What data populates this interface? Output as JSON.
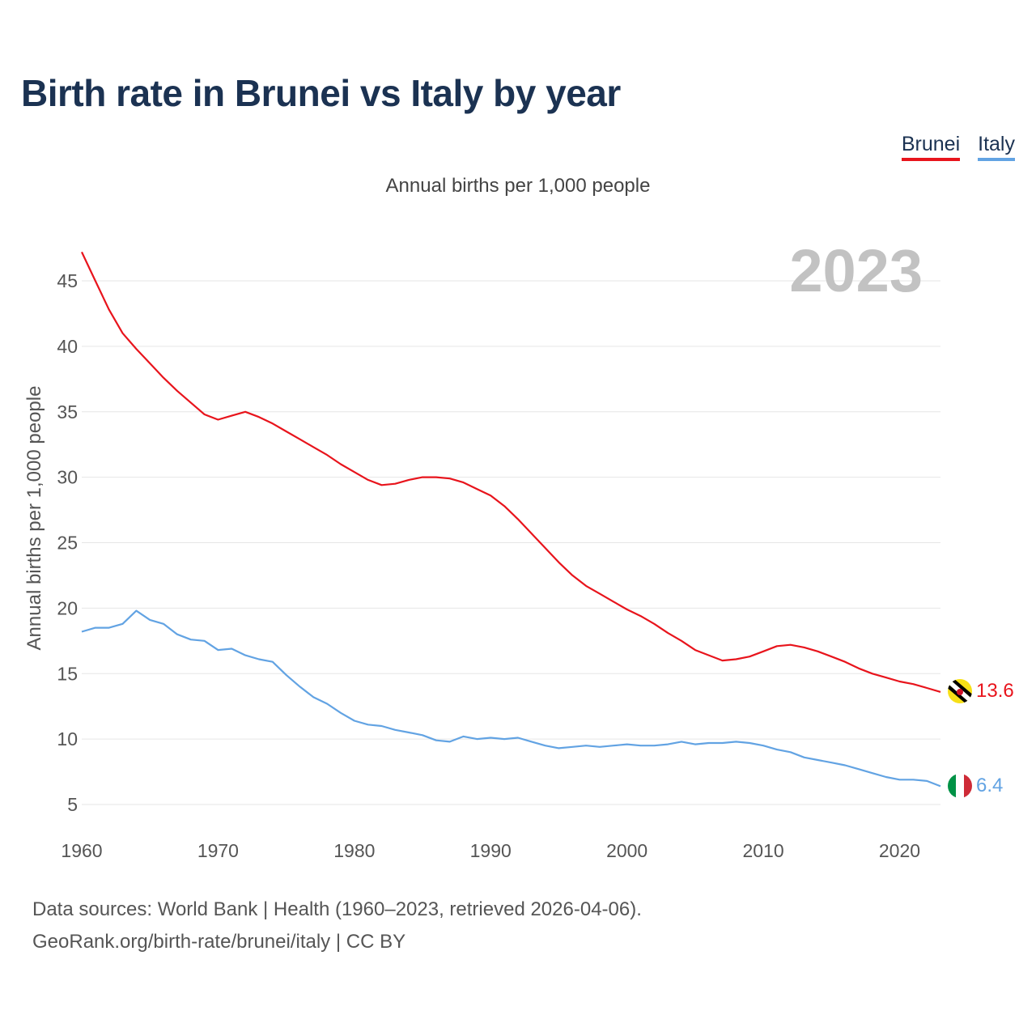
{
  "title": "Birth rate in Brunei vs Italy by year",
  "subtitle": "Annual births per 1,000 people",
  "footer": {
    "source": "Data sources: World Bank | Health (1960–2023, retrieved 2026-04-06).",
    "credit": "GeoRank.org/birth-rate/brunei/italy | CC BY"
  },
  "colors": {
    "brunei": "#e8141c",
    "italy": "#62a3e3",
    "title": "#1b3252"
  },
  "chart_data": {
    "type": "line",
    "title": "Birth rate in Brunei vs Italy by year",
    "ylabel": "Annual births per 1,000 people",
    "xlabel": "",
    "year_label": "2023",
    "xlim": [
      1960,
      2023
    ],
    "ylim": [
      5,
      47
    ],
    "x_ticks": [
      1960,
      1970,
      1980,
      1990,
      2000,
      2010,
      2020
    ],
    "y_ticks": [
      5,
      10,
      15,
      20,
      25,
      30,
      35,
      40,
      45
    ],
    "series": [
      {
        "name": "Brunei",
        "color": "#e8141c",
        "end_label": "13.6",
        "x": [
          1960,
          1961,
          1962,
          1963,
          1964,
          1965,
          1966,
          1967,
          1968,
          1969,
          1970,
          1971,
          1972,
          1973,
          1974,
          1975,
          1976,
          1977,
          1978,
          1979,
          1980,
          1981,
          1982,
          1983,
          1984,
          1985,
          1986,
          1987,
          1988,
          1989,
          1990,
          1991,
          1992,
          1993,
          1994,
          1995,
          1996,
          1997,
          1998,
          1999,
          2000,
          2001,
          2002,
          2003,
          2004,
          2005,
          2006,
          2007,
          2008,
          2009,
          2010,
          2011,
          2012,
          2013,
          2014,
          2015,
          2016,
          2017,
          2018,
          2019,
          2020,
          2021,
          2022,
          2023
        ],
        "values": [
          47.2,
          45.0,
          42.8,
          41.0,
          39.8,
          38.7,
          37.6,
          36.6,
          35.7,
          34.8,
          34.4,
          34.7,
          35.0,
          34.6,
          34.1,
          33.5,
          32.9,
          32.3,
          31.7,
          31.0,
          30.4,
          29.8,
          29.4,
          29.5,
          29.8,
          30.0,
          30.0,
          29.9,
          29.6,
          29.1,
          28.6,
          27.8,
          26.8,
          25.7,
          24.6,
          23.5,
          22.5,
          21.7,
          21.1,
          20.5,
          19.9,
          19.4,
          18.8,
          18.1,
          17.5,
          16.8,
          16.4,
          16.0,
          16.1,
          16.3,
          16.7,
          17.1,
          17.2,
          17.0,
          16.7,
          16.3,
          15.9,
          15.4,
          15.0,
          14.7,
          14.4,
          14.2,
          13.9,
          13.6
        ]
      },
      {
        "name": "Italy",
        "color": "#62a3e3",
        "end_label": "6.4",
        "x": [
          1960,
          1961,
          1962,
          1963,
          1964,
          1965,
          1966,
          1967,
          1968,
          1969,
          1970,
          1971,
          1972,
          1973,
          1974,
          1975,
          1976,
          1977,
          1978,
          1979,
          1980,
          1981,
          1982,
          1983,
          1984,
          1985,
          1986,
          1987,
          1988,
          1989,
          1990,
          1991,
          1992,
          1993,
          1994,
          1995,
          1996,
          1997,
          1998,
          1999,
          2000,
          2001,
          2002,
          2003,
          2004,
          2005,
          2006,
          2007,
          2008,
          2009,
          2010,
          2011,
          2012,
          2013,
          2014,
          2015,
          2016,
          2017,
          2018,
          2019,
          2020,
          2021,
          2022,
          2023
        ],
        "values": [
          18.2,
          18.5,
          18.5,
          18.8,
          19.8,
          19.1,
          18.8,
          18.0,
          17.6,
          17.5,
          16.8,
          16.9,
          16.4,
          16.1,
          15.9,
          14.9,
          14.0,
          13.2,
          12.7,
          12.0,
          11.4,
          11.1,
          11.0,
          10.7,
          10.5,
          10.3,
          9.9,
          9.8,
          10.2,
          10.0,
          10.1,
          10.0,
          10.1,
          9.8,
          9.5,
          9.3,
          9.4,
          9.5,
          9.4,
          9.5,
          9.6,
          9.5,
          9.5,
          9.6,
          9.8,
          9.6,
          9.7,
          9.7,
          9.8,
          9.7,
          9.5,
          9.2,
          9.0,
          8.6,
          8.4,
          8.2,
          8.0,
          7.7,
          7.4,
          7.1,
          6.9,
          6.9,
          6.8,
          6.4
        ]
      }
    ]
  }
}
